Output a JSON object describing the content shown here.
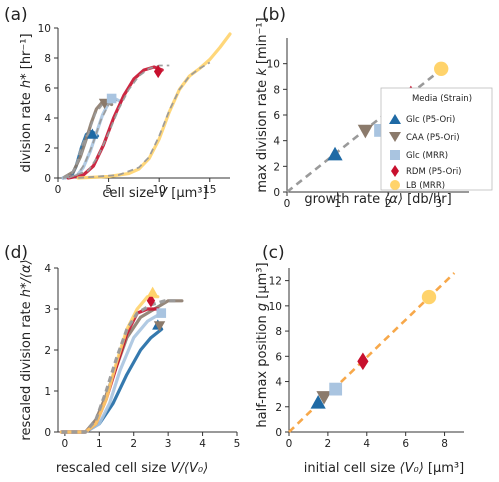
{
  "colors": {
    "glc_p5": "#1f6aa5",
    "caa_p5": "#8b7a6b",
    "glc_mrr": "#a9c4e0",
    "rdm_p5": "#c8102e",
    "lb_mrr": "#ffd36b",
    "fit_gray": "#9a9a9a",
    "fit_orange": "#f7a84a",
    "axis": "#333333"
  },
  "legend": {
    "title": "Media (Strain)",
    "entries": [
      {
        "label": "Glc (P5-Ori)",
        "marker": "triangle",
        "color_key": "glc_p5"
      },
      {
        "label": "CAA (P5-Ori)",
        "marker": "triangle-down",
        "color_key": "caa_p5"
      },
      {
        "label": "Glc (MRR)",
        "marker": "square",
        "color_key": "glc_mrr"
      },
      {
        "label": "RDM (P5-Ori)",
        "marker": "diamond",
        "color_key": "rdm_p5"
      },
      {
        "label": "LB (MRR)",
        "marker": "circle",
        "color_key": "lb_mrr"
      }
    ]
  },
  "chart_data": [
    {
      "panel_label": "(a)",
      "type": "line",
      "xlabel_pre": "cell size ",
      "xlabel_var": "V",
      "xlabel_unit": " [µm³]",
      "ylabel_pre": "division rate ",
      "ylabel_var": "h*",
      "ylabel_unit": " [hr⁻¹]",
      "xlim": [
        0,
        17
      ],
      "ylim": [
        0,
        10
      ],
      "xticks": [
        0,
        5,
        10,
        15
      ],
      "yticks": [
        0,
        2,
        4,
        6,
        8,
        10
      ],
      "series": [
        {
          "color_key": "glc_p5",
          "x": [
            0.5,
            1.3,
            1.8,
            2.3,
            2.8,
            3.2,
            3.6,
            3.9
          ],
          "y": [
            0,
            0.1,
            0.8,
            2.0,
            2.9,
            3.1,
            3.0,
            2.8
          ]
        },
        {
          "color_key": "caa_p5",
          "x": [
            0.5,
            1.5,
            2.2,
            2.8,
            3.3,
            3.8,
            4.3,
            4.8,
            5.3
          ],
          "y": [
            0,
            0.4,
            1.4,
            2.6,
            3.7,
            4.6,
            5.0,
            5.1,
            4.9
          ]
        },
        {
          "color_key": "glc_mrr",
          "x": [
            0.5,
            1.8,
            2.5,
            3.2,
            3.8,
            4.4,
            5.0,
            5.6,
            6.2
          ],
          "y": [
            0,
            0.1,
            0.7,
            1.8,
            3.0,
            4.2,
            5.0,
            5.3,
            5.1
          ]
        },
        {
          "color_key": "rdm_p5",
          "x": [
            1.0,
            2.5,
            3.5,
            4.5,
            5.5,
            6.5,
            7.5,
            8.5,
            9.5,
            10.3
          ],
          "y": [
            0,
            0.2,
            0.8,
            2.2,
            4.0,
            5.5,
            6.6,
            7.2,
            7.4,
            7.2
          ]
        },
        {
          "color_key": "lb_mrr",
          "x": [
            2.0,
            5.0,
            7.0,
            8.0,
            9.0,
            10.0,
            11.0,
            12.0,
            13.0,
            14.0,
            15.0,
            16.0,
            17.0
          ],
          "y": [
            0,
            0.1,
            0.3,
            0.6,
            1.3,
            2.6,
            4.4,
            5.9,
            6.8,
            7.3,
            7.9,
            8.7,
            9.6
          ]
        }
      ],
      "fits": [
        {
          "color_key": "fit_gray",
          "x": [
            0.5,
            1.3,
            1.8,
            2.3,
            2.8,
            3.3
          ],
          "y": [
            0,
            0.2,
            0.9,
            2.1,
            2.8,
            3.0
          ]
        },
        {
          "color_key": "fit_gray",
          "x": [
            0.5,
            1.6,
            2.3,
            3.0,
            3.7,
            4.4,
            5.2
          ],
          "y": [
            0,
            0.5,
            1.6,
            3.0,
            4.3,
            4.9,
            5.0
          ]
        },
        {
          "color_key": "fit_gray",
          "x": [
            0.5,
            1.9,
            2.6,
            3.4,
            4.2,
            5.0,
            5.8
          ],
          "y": [
            0,
            0.2,
            0.9,
            2.2,
            3.8,
            4.9,
            5.2
          ]
        },
        {
          "color_key": "fit_gray",
          "x": [
            1.0,
            3.0,
            4.0,
            5.0,
            6.0,
            7.0,
            8.0,
            9.0,
            10.0,
            11.0
          ],
          "y": [
            0,
            0.5,
            1.5,
            3.0,
            4.6,
            5.9,
            6.8,
            7.3,
            7.5,
            7.5
          ]
        },
        {
          "color_key": "fit_gray",
          "x": [
            2.0,
            6.0,
            8.0,
            9.0,
            10.0,
            11.0,
            12.0,
            13.0,
            14.0,
            15.0
          ],
          "y": [
            0,
            0.2,
            0.7,
            1.4,
            2.8,
            4.5,
            5.9,
            6.8,
            7.3,
            7.7
          ]
        }
      ],
      "markers": [
        {
          "color_key": "glc_p5",
          "marker": "triangle",
          "x": 3.4,
          "y": 2.9
        },
        {
          "color_key": "caa_p5",
          "marker": "triangle-down",
          "x": 4.6,
          "y": 5.0
        },
        {
          "color_key": "glc_mrr",
          "marker": "square",
          "x": 5.3,
          "y": 5.3
        },
        {
          "color_key": "rdm_p5",
          "marker": "diamond",
          "x": 9.9,
          "y": 7.1
        }
      ]
    },
    {
      "panel_label": "(b)",
      "type": "scatter",
      "xlabel_pre": "growth rate ",
      "xlabel_var": "⟨α⟩",
      "xlabel_unit": " [db/hr]",
      "ylabel_pre": "max division rate ",
      "ylabel_var": "k",
      "ylabel_unit": " [min⁻¹]",
      "xlim": [
        0,
        3.6
      ],
      "ylim": [
        0,
        12
      ],
      "xticks": [
        0,
        1,
        2,
        3
      ],
      "yticks": [
        0,
        2,
        4,
        6,
        8,
        10
      ],
      "points": [
        {
          "color_key": "glc_p5",
          "marker": "triangle",
          "x": 0.95,
          "y": 2.9
        },
        {
          "color_key": "caa_p5",
          "marker": "triangle-down",
          "x": 1.55,
          "y": 4.8
        },
        {
          "color_key": "glc_mrr",
          "marker": "square",
          "x": 1.85,
          "y": 4.8
        },
        {
          "color_key": "rdm_p5",
          "marker": "diamond",
          "x": 2.45,
          "y": 7.6
        },
        {
          "color_key": "lb_mrr",
          "marker": "circle",
          "x": 3.05,
          "y": 9.6
        }
      ],
      "fit_line": {
        "color_key": "fit_gray",
        "x": [
          0,
          3.1
        ],
        "y": [
          0,
          9.7
        ]
      }
    },
    {
      "panel_label": "(d)",
      "type": "line",
      "xlabel_pre": "rescaled cell size ",
      "xlabel_var": "V/⟨V₀⟩",
      "xlabel_unit": "",
      "ylabel_pre": "rescaled division rate ",
      "ylabel_var": "h*/⟨α⟩",
      "ylabel_unit": "",
      "xlim": [
        -0.2,
        5
      ],
      "ylim": [
        0,
        4
      ],
      "xticks": [
        0,
        1,
        2,
        3,
        4,
        5
      ],
      "yticks": [
        0,
        1,
        2,
        3,
        4
      ],
      "series": [
        {
          "color_key": "glc_p5",
          "x": [
            -0.1,
            0.6,
            1.0,
            1.4,
            1.8,
            2.2,
            2.5,
            2.8
          ],
          "y": [
            0,
            0,
            0.2,
            0.7,
            1.4,
            2.0,
            2.3,
            2.5
          ]
        },
        {
          "color_key": "caa_p5",
          "x": [
            -0.1,
            0.6,
            0.9,
            1.2,
            1.5,
            1.8,
            2.2,
            2.6,
            3.0,
            3.4
          ],
          "y": [
            0,
            0,
            0.3,
            0.9,
            1.6,
            2.3,
            2.8,
            3.0,
            3.2,
            3.2
          ]
        },
        {
          "color_key": "glc_mrr",
          "x": [
            -0.1,
            0.6,
            1.0,
            1.3,
            1.6,
            2.0,
            2.4,
            2.8
          ],
          "y": [
            0,
            0,
            0.2,
            0.7,
            1.5,
            2.3,
            2.7,
            2.9
          ]
        },
        {
          "color_key": "rdm_p5",
          "x": [
            -0.1,
            0.6,
            0.9,
            1.2,
            1.5,
            1.8,
            2.1,
            2.4,
            2.7
          ],
          "y": [
            0,
            0,
            0.2,
            0.8,
            1.6,
            2.4,
            2.9,
            3.0,
            3.0
          ]
        },
        {
          "color_key": "lb_mrr",
          "x": [
            -0.1,
            0.6,
            0.9,
            1.2,
            1.5,
            1.8,
            2.1,
            2.4,
            2.7
          ],
          "y": [
            0,
            0,
            0.2,
            0.8,
            1.7,
            2.5,
            3.0,
            3.3,
            3.3
          ]
        }
      ],
      "fits": [
        {
          "color_key": "fit_gray",
          "x": [
            -0.1,
            0.6,
            0.9,
            1.2,
            1.5,
            1.8,
            2.1,
            2.5,
            2.9,
            3.3
          ],
          "y": [
            0,
            0,
            0.3,
            1.0,
            1.8,
            2.5,
            2.9,
            3.1,
            3.2,
            3.2
          ]
        }
      ],
      "markers": [
        {
          "color_key": "glc_p5",
          "marker": "triangle",
          "x": 2.7,
          "y": 2.6
        },
        {
          "color_key": "caa_p5",
          "marker": "triangle-down",
          "x": 2.75,
          "y": 2.6
        },
        {
          "color_key": "glc_mrr",
          "marker": "square",
          "x": 2.8,
          "y": 2.9
        },
        {
          "color_key": "rdm_p5",
          "marker": "diamond",
          "x": 2.5,
          "y": 3.2
        },
        {
          "color_key": "lb_mrr",
          "marker": "triangle",
          "x": 2.55,
          "y": 3.4
        }
      ]
    },
    {
      "panel_label": "(c)",
      "type": "scatter",
      "xlabel_pre": "initial cell size ",
      "xlabel_var": "⟨V₀⟩",
      "xlabel_unit": " [µm³]",
      "ylabel_pre": "half-max position ",
      "ylabel_var": "g",
      "ylabel_unit": " [µm³]",
      "xlim": [
        0,
        9
      ],
      "ylim": [
        0,
        13
      ],
      "xticks": [
        0,
        2,
        4,
        6,
        8
      ],
      "yticks": [
        0,
        2,
        4,
        6,
        8,
        10,
        12
      ],
      "points": [
        {
          "color_key": "glc_p5",
          "marker": "triangle",
          "x": 1.5,
          "y": 2.3
        },
        {
          "color_key": "caa_p5",
          "marker": "triangle-down",
          "x": 1.8,
          "y": 2.8
        },
        {
          "color_key": "glc_mrr",
          "marker": "square",
          "x": 2.4,
          "y": 3.4
        },
        {
          "color_key": "rdm_p5",
          "marker": "diamond",
          "x": 3.8,
          "y": 5.6
        },
        {
          "color_key": "lb_mrr",
          "marker": "circle",
          "x": 7.2,
          "y": 10.7
        }
      ],
      "fit_line": {
        "color_key": "fit_orange",
        "x": [
          0,
          8.5
        ],
        "y": [
          0,
          12.6
        ]
      }
    }
  ]
}
